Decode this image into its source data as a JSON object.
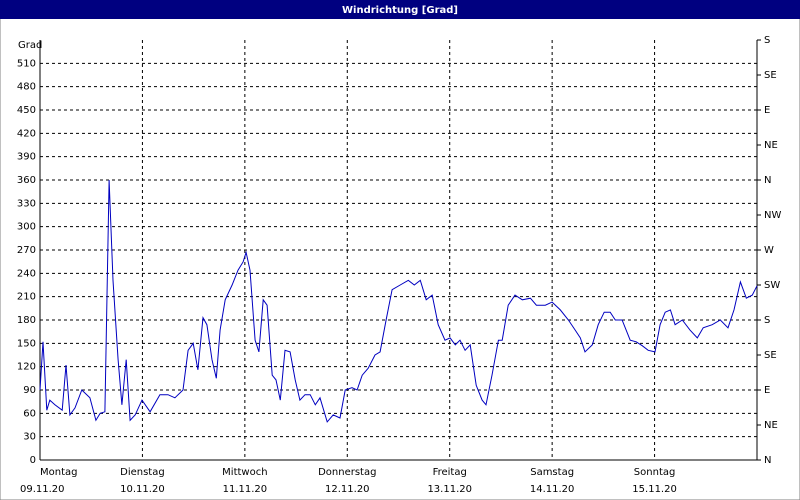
{
  "chart_data": {
    "type": "line",
    "title": "Windrichtung [Grad]",
    "y_label": "Grad",
    "xlim": [
      0,
      168
    ],
    "xticks": [
      {
        "value": 0,
        "label": "Montag"
      },
      {
        "value": 24,
        "label": "Dienstag"
      },
      {
        "value": 48,
        "label": "Mittwoch"
      },
      {
        "value": 72,
        "label": "Donnerstag"
      },
      {
        "value": 96,
        "label": "Freitag"
      },
      {
        "value": 120,
        "label": "Samstag"
      },
      {
        "value": 144,
        "label": "Sonntag"
      }
    ],
    "xtick_dates": [
      "09.11.20",
      "10.11.20",
      "11.11.20",
      "12.11.20",
      "13.11.20",
      "14.11.20",
      "15.11.20"
    ],
    "ylim": [
      0,
      540
    ],
    "yticks": [
      0,
      30,
      60,
      90,
      120,
      150,
      180,
      210,
      240,
      270,
      300,
      330,
      360,
      390,
      420,
      450,
      480,
      510
    ],
    "y2lim": [
      0,
      540
    ],
    "y2ticks": [
      {
        "value": 0,
        "label": "N"
      },
      {
        "value": 45,
        "label": "NE"
      },
      {
        "value": 90,
        "label": "E"
      },
      {
        "value": 135,
        "label": "SE"
      },
      {
        "value": 180,
        "label": "S"
      },
      {
        "value": 225,
        "label": "SW"
      },
      {
        "value": 270,
        "label": "W"
      },
      {
        "value": 315,
        "label": "NW"
      },
      {
        "value": 360,
        "label": "N"
      },
      {
        "value": 405,
        "label": "NE"
      },
      {
        "value": 450,
        "label": "E"
      },
      {
        "value": 495,
        "label": "SE"
      },
      {
        "value": 540,
        "label": "S"
      }
    ],
    "grid": true,
    "color": "#0000c0",
    "x": [
      0,
      0.7,
      1.6,
      2.3,
      3.5,
      5.2,
      6.1,
      7.0,
      8.2,
      9.8,
      11.7,
      13.1,
      14.1,
      15.2,
      16.2,
      17.1,
      18.3,
      19.2,
      20.2,
      21.1,
      22.3,
      23.9,
      25.8,
      28.1,
      30.0,
      31.6,
      33.5,
      34.7,
      35.9,
      37.0,
      38.2,
      39.1,
      40.3,
      41.3,
      42.2,
      43.4,
      45.0,
      46.4,
      47.6,
      48.3,
      49.2,
      50.4,
      51.3,
      52.3,
      53.2,
      54.4,
      55.3,
      56.3,
      57.4,
      58.6,
      59.8,
      60.9,
      62.1,
      63.3,
      64.5,
      65.6,
      67.3,
      68.7,
      70.3,
      71.5,
      73.1,
      74.3,
      75.5,
      76.9,
      78.5,
      79.7,
      81.1,
      82.5,
      84.4,
      86.3,
      87.7,
      89.1,
      90.5,
      91.9,
      93.3,
      94.9,
      96.1,
      97.3,
      98.4,
      99.6,
      100.8,
      102.2,
      103.6,
      104.5,
      105.9,
      107.4,
      108.3,
      109.7,
      111.3,
      113.0,
      114.9,
      116.3,
      118.4,
      120.0,
      121.9,
      123.8,
      125.4,
      126.6,
      127.7,
      129.4,
      130.8,
      132.2,
      133.6,
      134.8,
      136.4,
      138.3,
      139.7,
      141.1,
      142.5,
      144.1,
      145.3,
      146.5,
      147.7,
      148.8,
      150.5,
      152.3,
      154.0,
      155.4,
      157.5,
      159.4,
      161.2,
      162.6,
      164.1,
      165.5,
      166.9,
      168
    ],
    "values": [
      90,
      152,
      64,
      77,
      71,
      64,
      122,
      58,
      67,
      90,
      80,
      51,
      60,
      62,
      360,
      231,
      129,
      71,
      129,
      51,
      58,
      77,
      62,
      84,
      84,
      80,
      90,
      141,
      150,
      116,
      183,
      174,
      129,
      105,
      167,
      206,
      225,
      244,
      255,
      267,
      244,
      154,
      139,
      206,
      199,
      109,
      103,
      77,
      141,
      139,
      103,
      77,
      84,
      84,
      71,
      80,
      49,
      58,
      54,
      90,
      93,
      90,
      109,
      118,
      135,
      139,
      180,
      219,
      225,
      231,
      225,
      231,
      206,
      212,
      174,
      154,
      157,
      148,
      154,
      141,
      148,
      96,
      77,
      71,
      109,
      154,
      154,
      199,
      212,
      206,
      208,
      199,
      199,
      203,
      193,
      180,
      167,
      157,
      139,
      148,
      174,
      190,
      190,
      180,
      180,
      154,
      152,
      147,
      141,
      139,
      174,
      190,
      193,
      174,
      180,
      167,
      157,
      170,
      174,
      180,
      170,
      193,
      229,
      208,
      212,
      224
    ]
  }
}
